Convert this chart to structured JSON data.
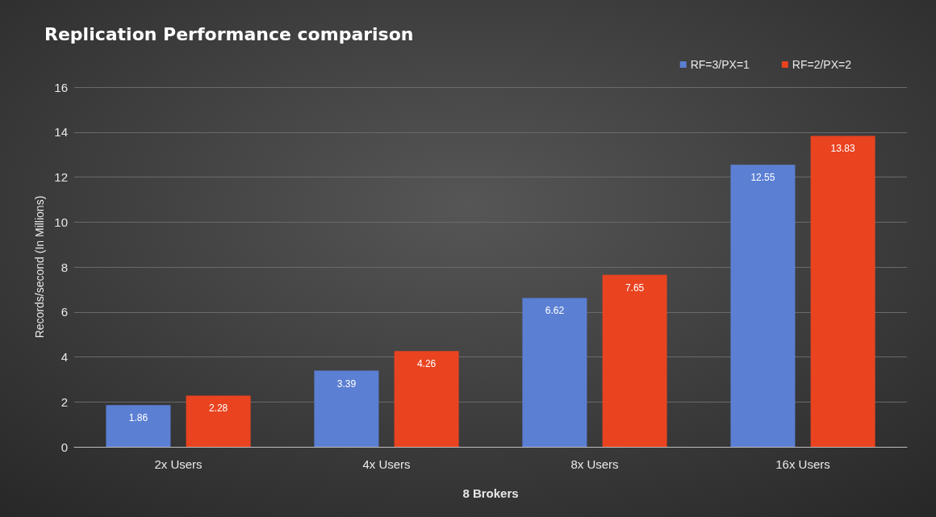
{
  "chart_data": {
    "type": "bar",
    "title": "Replication Performance comparison",
    "xlabel": "8 Brokers",
    "ylabel": "Records/second (In Millions)",
    "categories": [
      "2x Users",
      "4x Users",
      "8x Users",
      "16x Users"
    ],
    "series": [
      {
        "name": "RF=3/PX=1",
        "color": "#5b7fd3",
        "values": [
          1.86,
          3.39,
          6.62,
          12.55
        ]
      },
      {
        "name": "RF=2/PX=2",
        "color": "#e94320",
        "values": [
          2.28,
          4.26,
          7.65,
          13.83
        ]
      }
    ],
    "ylim": [
      0,
      16
    ],
    "yticks": [
      0,
      2,
      4,
      6,
      8,
      10,
      12,
      14,
      16
    ],
    "grid": "y",
    "legend": "top right",
    "data_labels": true
  }
}
